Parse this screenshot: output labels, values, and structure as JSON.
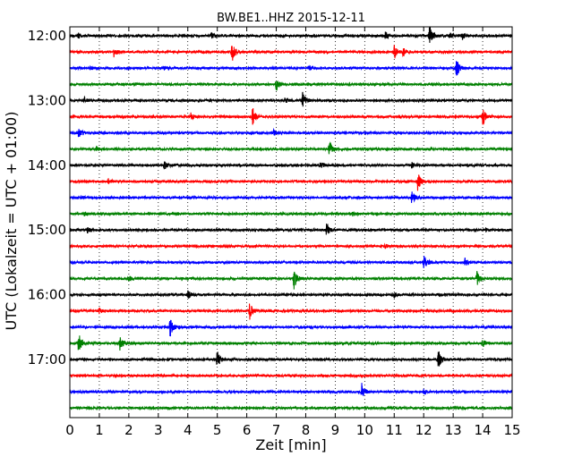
{
  "chart_data": {
    "type": "line",
    "title": "BW.BE1..HHZ 2015-12-11",
    "xlabel": "Zeit  [min]",
    "ylabel": "UTC (Lokalzeit = UTC + 01:00)",
    "xlim": [
      0,
      15
    ],
    "x_ticks": [
      "0",
      "1",
      "2",
      "3",
      "4",
      "5",
      "6",
      "7",
      "8",
      "9",
      "10",
      "11",
      "12",
      "13",
      "14",
      "15"
    ],
    "y_tick_labels": [
      "12:00",
      "13:00",
      "14:00",
      "15:00",
      "16:00",
      "17:00"
    ],
    "row_interval_min": 15,
    "grid": "vertical dotted",
    "series_colors": [
      "#000000",
      "#ff0000",
      "#0000ff",
      "#008000"
    ],
    "rows": [
      {
        "time": "12:00",
        "events": [
          [
            0.3,
            3
          ],
          [
            4.8,
            3
          ],
          [
            10.7,
            4
          ],
          [
            12.2,
            12
          ],
          [
            12.9,
            4
          ],
          [
            13.3,
            4
          ]
        ]
      },
      {
        "time": "12:15",
        "events": [
          [
            1.5,
            6
          ],
          [
            5.5,
            11
          ],
          [
            11.0,
            8
          ],
          [
            11.3,
            5
          ]
        ]
      },
      {
        "time": "12:30",
        "events": [
          [
            0.7,
            2
          ],
          [
            3.2,
            2
          ],
          [
            8.1,
            3
          ],
          [
            13.1,
            11
          ]
        ]
      },
      {
        "time": "12:45",
        "events": [
          [
            7.0,
            7
          ]
        ]
      },
      {
        "time": "13:00",
        "events": [
          [
            0.5,
            3
          ],
          [
            7.3,
            3
          ],
          [
            7.9,
            9
          ]
        ]
      },
      {
        "time": "13:15",
        "events": [
          [
            4.1,
            4
          ],
          [
            6.2,
            10
          ],
          [
            14.0,
            10
          ]
        ]
      },
      {
        "time": "13:30",
        "events": [
          [
            0.3,
            5
          ],
          [
            6.9,
            3
          ]
        ]
      },
      {
        "time": "13:45",
        "events": [
          [
            0.9,
            3
          ],
          [
            8.8,
            9
          ]
        ]
      },
      {
        "time": "14:00",
        "events": [
          [
            3.2,
            5
          ],
          [
            8.5,
            4
          ],
          [
            11.6,
            3
          ]
        ]
      },
      {
        "time": "14:15",
        "events": [
          [
            1.3,
            3
          ],
          [
            11.8,
            10
          ]
        ]
      },
      {
        "time": "14:30",
        "events": [
          [
            0.4,
            2
          ],
          [
            11.6,
            7
          ]
        ]
      },
      {
        "time": "14:45",
        "events": [
          [
            0.5,
            2
          ],
          [
            9.6,
            2
          ]
        ]
      },
      {
        "time": "15:00",
        "events": [
          [
            0.6,
            3
          ],
          [
            8.7,
            7
          ],
          [
            14.1,
            2
          ]
        ]
      },
      {
        "time": "15:15",
        "events": [
          [
            10.7,
            2
          ]
        ]
      },
      {
        "time": "15:30",
        "events": [
          [
            12.0,
            9
          ],
          [
            13.4,
            4
          ]
        ]
      },
      {
        "time": "15:45",
        "events": [
          [
            2.0,
            3
          ],
          [
            7.6,
            12
          ],
          [
            13.8,
            8
          ]
        ]
      },
      {
        "time": "16:00",
        "events": [
          [
            4.0,
            5
          ],
          [
            11.0,
            3
          ]
        ]
      },
      {
        "time": "16:15",
        "events": [
          [
            1.0,
            3
          ],
          [
            6.1,
            9
          ]
        ]
      },
      {
        "time": "16:30",
        "events": [
          [
            3.4,
            10
          ]
        ]
      },
      {
        "time": "16:45",
        "events": [
          [
            0.3,
            11
          ],
          [
            1.7,
            9
          ],
          [
            14.0,
            4
          ]
        ]
      },
      {
        "time": "17:00",
        "events": [
          [
            5.0,
            10
          ],
          [
            12.5,
            9
          ]
        ]
      },
      {
        "time": "17:15",
        "events": []
      },
      {
        "time": "17:30",
        "events": [
          [
            9.9,
            9
          ],
          [
            12.0,
            3
          ]
        ]
      },
      {
        "time": "17:45",
        "events": []
      }
    ]
  }
}
